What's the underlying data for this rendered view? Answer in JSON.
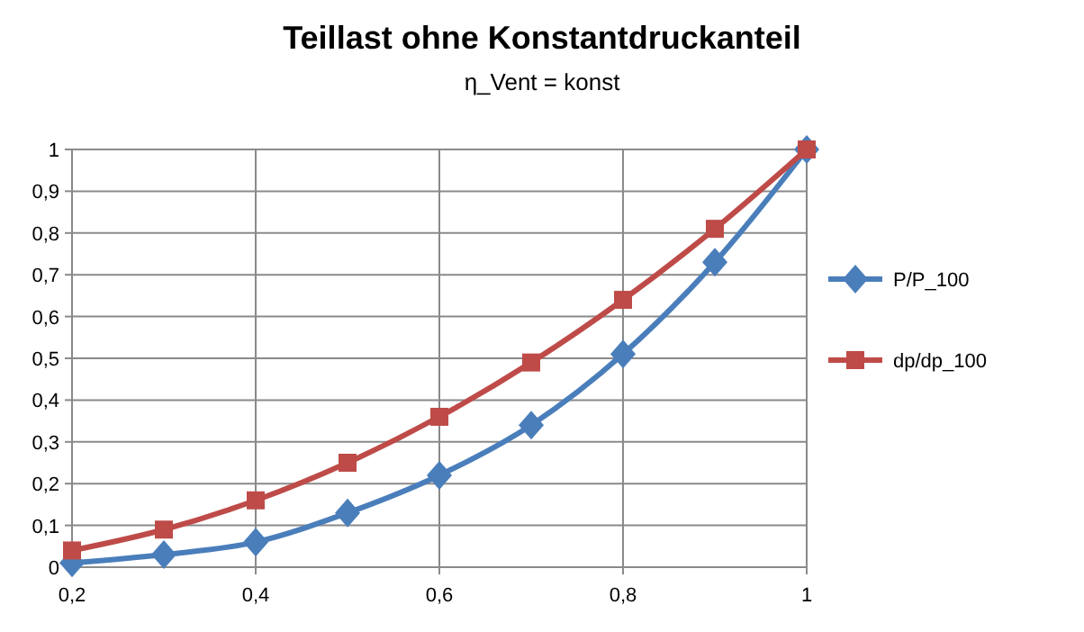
{
  "chart_data": {
    "type": "line",
    "title": "Teillast ohne Konstantdruckanteil",
    "subtitle": "η_Vent = konst",
    "x": [
      0.2,
      0.3,
      0.4,
      0.5,
      0.6,
      0.7,
      0.8,
      0.9,
      1
    ],
    "series": [
      {
        "name": "P/P_100",
        "color": "#4a7ebb",
        "marker": "diamond",
        "values": [
          0.01,
          0.03,
          0.06,
          0.13,
          0.22,
          0.34,
          0.51,
          0.73,
          1
        ]
      },
      {
        "name": "dp/dp_100",
        "color": "#be4b48",
        "marker": "square",
        "values": [
          0.04,
          0.09,
          0.16,
          0.25,
          0.36,
          0.49,
          0.64,
          0.81,
          1
        ]
      }
    ],
    "xlim": [
      0.2,
      1
    ],
    "xticks": [
      {
        "value": 0.2,
        "label": "0,2"
      },
      {
        "value": 0.4,
        "label": "0,4"
      },
      {
        "value": 0.6,
        "label": "0,6"
      },
      {
        "value": 0.8,
        "label": "0,8"
      },
      1
    ],
    "ylim": [
      0,
      1
    ],
    "yticks": [
      0,
      {
        "value": 0.1,
        "label": "0,1"
      },
      {
        "value": 0.2,
        "label": "0,2"
      },
      {
        "value": 0.3,
        "label": "0,3"
      },
      {
        "value": 0.4,
        "label": "0,4"
      },
      {
        "value": 0.5,
        "label": "0,5"
      },
      {
        "value": 0.6,
        "label": "0,6"
      },
      {
        "value": 0.7,
        "label": "0,7"
      },
      {
        "value": 0.8,
        "label": "0,8"
      },
      {
        "value": 0.9,
        "label": "0,9"
      },
      1
    ],
    "grid": true,
    "legend": "right",
    "line_style": "solid"
  }
}
